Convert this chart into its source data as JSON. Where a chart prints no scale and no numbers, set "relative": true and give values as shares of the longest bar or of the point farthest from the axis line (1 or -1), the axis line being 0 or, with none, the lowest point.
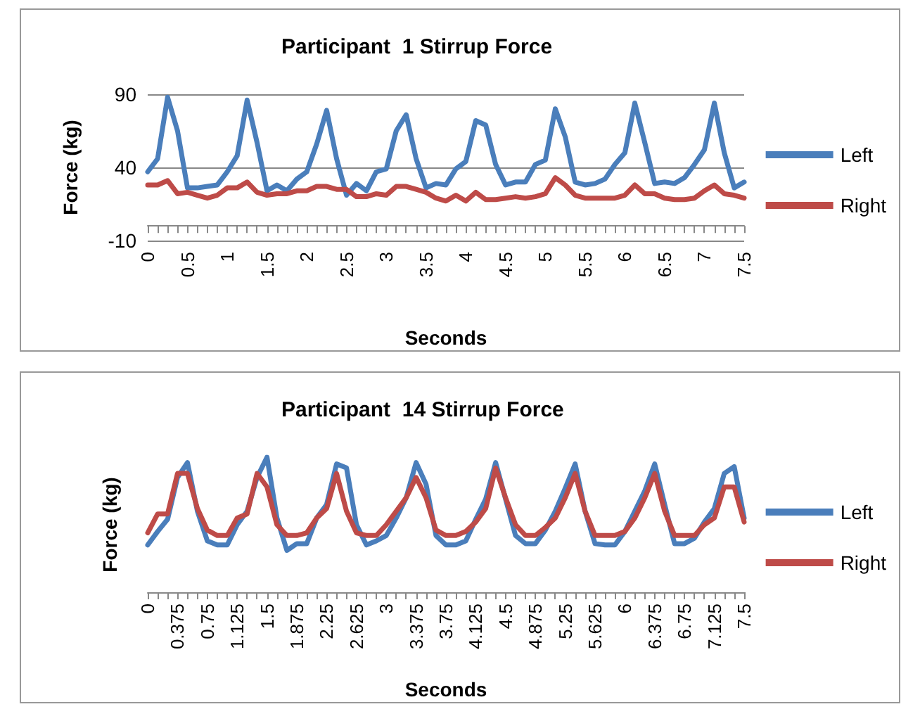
{
  "chart_data": [
    {
      "type": "line",
      "title": "Participant  1 Stirrup Force",
      "xlabel": "Seconds",
      "ylabel": "Force (kg)",
      "ylim": [
        -10,
        90
      ],
      "yticks": [
        -10,
        40,
        90
      ],
      "grid": "y",
      "legend": "right",
      "marker": "none",
      "categories": [
        "0",
        null,
        null,
        null,
        "0.5",
        null,
        null,
        null,
        "1",
        null,
        null,
        null,
        "1.5",
        null,
        null,
        null,
        "2",
        null,
        null,
        null,
        "2.5",
        null,
        null,
        null,
        "3",
        null,
        null,
        null,
        "3.5",
        null,
        null,
        null,
        "4",
        null,
        null,
        null,
        "4.5",
        null,
        null,
        null,
        "5",
        null,
        null,
        null,
        "5.5",
        null,
        null,
        null,
        "6",
        null,
        null,
        null,
        "6.5",
        null,
        null,
        null,
        "7",
        null,
        null,
        null,
        "7.5"
      ],
      "series": [
        {
          "name": "Left",
          "color": "#4a7ebb",
          "values": [
            37,
            46,
            88,
            65,
            26,
            26,
            27,
            28,
            37,
            48,
            86,
            57,
            24,
            28,
            24,
            32,
            37,
            56,
            79,
            46,
            21,
            29,
            24,
            37,
            39,
            65,
            76,
            46,
            26,
            29,
            28,
            39,
            44,
            72,
            69,
            42,
            28,
            30,
            30,
            42,
            45,
            80,
            61,
            30,
            28,
            29,
            32,
            42,
            50,
            84,
            57,
            29,
            30,
            29,
            33,
            42,
            52,
            84,
            50,
            26,
            30
          ]
        },
        {
          "name": "Right",
          "color": "#be4b48",
          "values": [
            28,
            28,
            31,
            22,
            23,
            21,
            19,
            21,
            26,
            26,
            30,
            23,
            21,
            22,
            22,
            24,
            24,
            27,
            27,
            25,
            25,
            20,
            20,
            22,
            21,
            27,
            27,
            25,
            23,
            19,
            17,
            21,
            17,
            23,
            18,
            18,
            19,
            20,
            19,
            20,
            22,
            33,
            28,
            21,
            19,
            19,
            19,
            19,
            21,
            28,
            22,
            22,
            19,
            18,
            18,
            19,
            24,
            28,
            22,
            21,
            19
          ]
        }
      ]
    },
    {
      "type": "line",
      "title": "Participant  14 Stirrup Force",
      "xlabel": "Seconds",
      "ylabel": "Force (kg)",
      "relative": true,
      "legend": "right",
      "marker": "none",
      "categories": [
        "0",
        null,
        null,
        "0.375",
        null,
        null,
        "0.75",
        null,
        null,
        "1.125",
        null,
        null,
        "1.5",
        null,
        null,
        "1.875",
        null,
        null,
        "2.25",
        null,
        null,
        "2.625",
        null,
        null,
        "3",
        null,
        null,
        "3.375",
        null,
        null,
        "3.75",
        null,
        null,
        "4.125",
        null,
        null,
        "4.5",
        null,
        null,
        "4.875",
        null,
        null,
        "5.25",
        null,
        null,
        "5.625",
        null,
        null,
        "6",
        null,
        null,
        "6.375",
        null,
        null,
        "6.75",
        null,
        null,
        "7.125",
        null,
        null,
        "7.5"
      ],
      "series": [
        {
          "name": "Left",
          "color": "#4a7ebb",
          "values": [
            0.35,
            0.45,
            0.54,
            0.85,
            0.96,
            0.6,
            0.38,
            0.35,
            0.35,
            0.5,
            0.6,
            0.85,
            1,
            0.55,
            0.31,
            0.36,
            0.36,
            0.55,
            0.65,
            0.95,
            0.92,
            0.5,
            0.35,
            0.38,
            0.42,
            0.55,
            0.7,
            0.96,
            0.8,
            0.42,
            0.35,
            0.35,
            0.38,
            0.54,
            0.69,
            0.96,
            0.69,
            0.42,
            0.36,
            0.36,
            0.46,
            0.6,
            0.77,
            0.95,
            0.6,
            0.36,
            0.35,
            0.35,
            0.45,
            0.6,
            0.75,
            0.95,
            0.65,
            0.36,
            0.36,
            0.4,
            0.52,
            0.62,
            0.88,
            0.93,
            0.55
          ]
        },
        {
          "name": "Right",
          "color": "#be4b48",
          "values": [
            0.44,
            0.58,
            0.58,
            0.88,
            0.88,
            0.62,
            0.46,
            0.42,
            0.42,
            0.55,
            0.58,
            0.88,
            0.78,
            0.5,
            0.42,
            0.42,
            0.44,
            0.55,
            0.62,
            0.88,
            0.6,
            0.44,
            0.42,
            0.42,
            0.5,
            0.6,
            0.7,
            0.85,
            0.7,
            0.46,
            0.42,
            0.42,
            0.45,
            0.52,
            0.62,
            0.92,
            0.7,
            0.5,
            0.42,
            0.42,
            0.48,
            0.55,
            0.7,
            0.88,
            0.6,
            0.42,
            0.42,
            0.42,
            0.45,
            0.55,
            0.7,
            0.88,
            0.6,
            0.42,
            0.42,
            0.42,
            0.5,
            0.55,
            0.78,
            0.78,
            0.52
          ]
        }
      ]
    }
  ]
}
